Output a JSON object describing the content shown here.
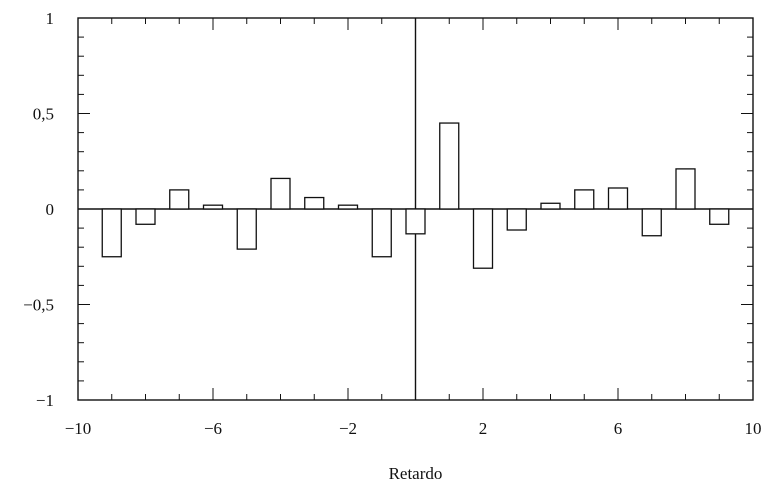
{
  "chart_data": {
    "type": "bar",
    "title": "",
    "xlabel": "Retardo",
    "ylabel": "",
    "xlim": [
      -10,
      10
    ],
    "ylim": [
      -1,
      1
    ],
    "x_ticks": [
      -10,
      -6,
      -2,
      2,
      6,
      10
    ],
    "x_tick_labels": [
      "−10",
      "−6",
      "−2",
      "2",
      "6",
      "10"
    ],
    "y_ticks": [
      -1,
      -0.5,
      0,
      0.5,
      1
    ],
    "y_tick_labels": [
      "−1",
      "−0,5",
      "0",
      "0,5",
      "1"
    ],
    "grid": false,
    "vertical_reference_line_x": 0,
    "x": [
      -9,
      -8,
      -7,
      -6,
      -5,
      -4,
      -3,
      -2,
      -1,
      0,
      1,
      2,
      3,
      4,
      5,
      6,
      7,
      8,
      9
    ],
    "values": [
      -0.25,
      -0.08,
      0.1,
      0.02,
      -0.21,
      0.16,
      0.06,
      0.02,
      -0.25,
      -0.13,
      0.45,
      -0.31,
      -0.11,
      0.03,
      0.1,
      0.11,
      -0.14,
      0.21,
      -0.08
    ]
  }
}
